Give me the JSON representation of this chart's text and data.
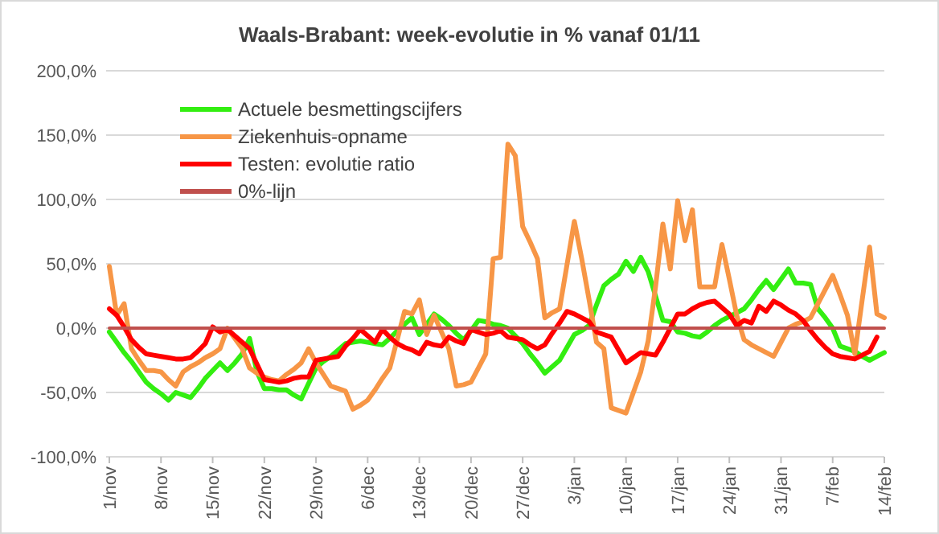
{
  "chart_data": {
    "type": "line",
    "title": "Waals-Brabant: week-evolutie in %  vanaf 01/11",
    "categories": [
      "1/nov",
      null,
      null,
      null,
      null,
      null,
      null,
      "8/nov",
      null,
      null,
      null,
      null,
      null,
      null,
      "15/nov",
      null,
      null,
      null,
      null,
      null,
      null,
      "22/nov",
      null,
      null,
      null,
      null,
      null,
      null,
      "29/nov",
      null,
      null,
      null,
      null,
      null,
      null,
      "6/dec",
      null,
      null,
      null,
      null,
      null,
      null,
      "13/dec",
      null,
      null,
      null,
      null,
      null,
      null,
      "20/dec",
      null,
      null,
      null,
      null,
      null,
      null,
      "27/dec",
      null,
      null,
      null,
      null,
      null,
      null,
      "3/jan",
      null,
      null,
      null,
      null,
      null,
      null,
      "10/jan",
      null,
      null,
      null,
      null,
      null,
      null,
      "17/jan",
      null,
      null,
      null,
      null,
      null,
      null,
      "24/jan",
      null,
      null,
      null,
      null,
      null,
      null,
      "31/jan",
      null,
      null,
      null,
      null,
      null,
      null,
      "7/feb",
      null,
      null,
      null,
      null,
      null,
      null,
      "14/feb"
    ],
    "ylim": [
      -100,
      200
    ],
    "yticks": [
      {
        "value": -100,
        "label": "-100,0%"
      },
      {
        "value": -50,
        "label": "-50,0%"
      },
      {
        "value": 0,
        "label": "0,0%"
      },
      {
        "value": 50,
        "label": "50,0%"
      },
      {
        "value": 100,
        "label": "100,0%"
      },
      {
        "value": 150,
        "label": "150,0%"
      },
      {
        "value": 200,
        "label": "200,0%"
      }
    ],
    "grid": "y",
    "legend": "top left",
    "marker": "none",
    "line_style": "solid",
    "series": [
      {
        "name": "Actuele besmettingscijfers",
        "color": "#33ee11",
        "values": [
          -3,
          -11,
          -19,
          -26,
          -34,
          -42,
          -47,
          -51,
          -56,
          -50,
          -52,
          -54,
          -47,
          -39,
          -33,
          -27,
          -33,
          -27,
          -20,
          -8,
          -34,
          -47,
          -47,
          -48,
          -48,
          -52,
          -55,
          -43,
          -31,
          -26,
          -22,
          -17,
          -12,
          -11,
          -10,
          -11,
          -12,
          -13,
          -8,
          -2,
          3,
          8,
          -5,
          3,
          11,
          7,
          2,
          -4,
          -9,
          -2,
          6,
          5,
          3,
          2,
          0,
          -6,
          -12,
          -20,
          -27,
          -35,
          -30,
          -25,
          -15,
          -5,
          -2,
          2,
          18,
          33,
          38,
          42,
          52,
          44,
          55,
          44,
          25,
          6,
          5,
          -3,
          -4,
          -6,
          -7,
          -3,
          2,
          6,
          9,
          12,
          15,
          22,
          30,
          37,
          30,
          38,
          46,
          35,
          35,
          34,
          15,
          8,
          0,
          -14,
          -16,
          -18,
          -22,
          -25,
          -22,
          -19
        ]
      },
      {
        "name": "Ziekenhuis-opname",
        "color": "#f79646",
        "values": [
          48,
          10,
          19,
          -16,
          -25,
          -33,
          -33,
          -34,
          -40,
          -45,
          -34,
          -30,
          -27,
          -23,
          -20,
          -16,
          0,
          -8,
          -16,
          -31,
          -35,
          -38,
          -40,
          -41,
          -36,
          -32,
          -27,
          -16,
          -27,
          -36,
          -45,
          -47,
          -49,
          -63,
          -60,
          -56,
          -48,
          -39,
          -31,
          -9,
          13,
          11,
          22,
          -5,
          10,
          -3,
          -16,
          -45,
          -44,
          -42,
          -31,
          -20,
          54,
          55,
          143,
          134,
          79,
          67,
          54,
          8,
          12,
          15,
          49,
          83,
          54,
          22,
          -11,
          -16,
          -62,
          -64,
          -66,
          -50,
          -34,
          -10,
          32,
          81,
          46,
          99,
          68,
          92,
          32,
          32,
          32,
          65,
          38,
          10,
          -9,
          -13,
          -16,
          -19,
          -22,
          -11,
          0,
          3,
          5,
          8,
          19,
          30,
          41,
          26,
          10,
          -20,
          22,
          63,
          11,
          8
        ]
      },
      {
        "name": "Testen: evolutie ratio",
        "color": "#ff0000",
        "values": [
          15,
          10,
          1,
          -9,
          -15,
          -20,
          -21,
          -22,
          -23,
          -24,
          -24,
          -23,
          -18,
          -12,
          1,
          -3,
          -1,
          -6,
          -11,
          -16,
          -28,
          -40,
          -41,
          -42,
          -41,
          -39,
          -38,
          -38,
          -25,
          -24,
          -23,
          -22,
          -14,
          -8,
          -1,
          -6,
          -11,
          -1,
          -7,
          -12,
          -15,
          -17,
          -20,
          -11,
          -13,
          -14,
          -7,
          -10,
          -12,
          -1,
          -3,
          -5,
          -4,
          -2,
          -7,
          -8,
          -9,
          -13,
          -16,
          -13,
          -4,
          4,
          13,
          11,
          8,
          5,
          -3,
          -5,
          -7,
          -17,
          -27,
          -23,
          -19,
          -20,
          -21,
          -11,
          0,
          11,
          11,
          15,
          18,
          20,
          21,
          16,
          11,
          2,
          6,
          4,
          17,
          13,
          21,
          18,
          14,
          11,
          6,
          -2,
          -9,
          -15,
          -20,
          -22,
          -23,
          -24,
          -21,
          -18,
          -7,
          null
        ]
      },
      {
        "name": "0%-lijn",
        "color": "#c0504d",
        "values": [
          0,
          0,
          0,
          0,
          0,
          0,
          0,
          0,
          0,
          0,
          0,
          0,
          0,
          0,
          0,
          0,
          0,
          0,
          0,
          0,
          0,
          0,
          0,
          0,
          0,
          0,
          0,
          0,
          0,
          0,
          0,
          0,
          0,
          0,
          0,
          0,
          0,
          0,
          0,
          0,
          0,
          0,
          0,
          0,
          0,
          0,
          0,
          0,
          0,
          0,
          0,
          0,
          0,
          0,
          0,
          0,
          0,
          0,
          0,
          0,
          0,
          0,
          0,
          0,
          0,
          0,
          0,
          0,
          0,
          0,
          0,
          0,
          0,
          0,
          0,
          0,
          0,
          0,
          0,
          0,
          0,
          0,
          0,
          0,
          0,
          0,
          0,
          0,
          0,
          0,
          0,
          0,
          0,
          0,
          0,
          0,
          0,
          0,
          0,
          0,
          0,
          0,
          0,
          0,
          0,
          0
        ]
      }
    ]
  }
}
